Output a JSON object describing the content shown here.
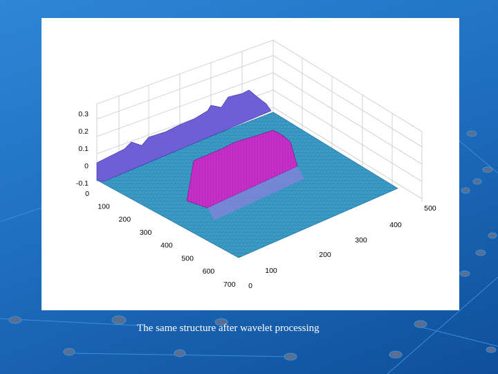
{
  "plot": {
    "z_ticks": [
      0.3,
      0.2,
      0.1,
      0,
      -0.1
    ],
    "y_ticks": [
      0,
      100,
      200,
      300,
      400,
      500,
      600,
      700
    ],
    "x_ticks": [
      0,
      100,
      200,
      300,
      400,
      500
    ]
  },
  "caption": "The same structure after wavelet processing"
}
